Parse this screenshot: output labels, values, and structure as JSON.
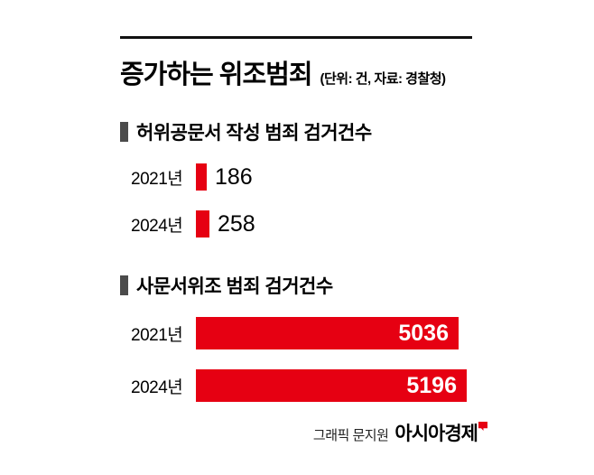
{
  "header": {
    "title": "증가하는 위조범죄",
    "subtitle": "(단위: 건, 자료: 경찰청)"
  },
  "colors": {
    "bar_red": "#e60012",
    "marker_gray": "#4b4b4b"
  },
  "chart_data": [
    {
      "type": "bar",
      "orientation": "horizontal",
      "title": "허위공문서 작성 범죄 검거건수",
      "categories": [
        "2021년",
        "2024년"
      ],
      "values": [
        186,
        258
      ],
      "value_label_position": "outside",
      "bar_color": "#e60012",
      "grid": false,
      "legend": false
    },
    {
      "type": "bar",
      "orientation": "horizontal",
      "title": "사문서위조 범죄 검거건수",
      "categories": [
        "2021년",
        "2024년"
      ],
      "values": [
        5036,
        5196
      ],
      "value_label_position": "inside",
      "bar_color": "#e60012",
      "grid": false,
      "legend": false
    }
  ],
  "footer": {
    "credit": "그래픽 문지원",
    "brand": "아시아경제"
  }
}
